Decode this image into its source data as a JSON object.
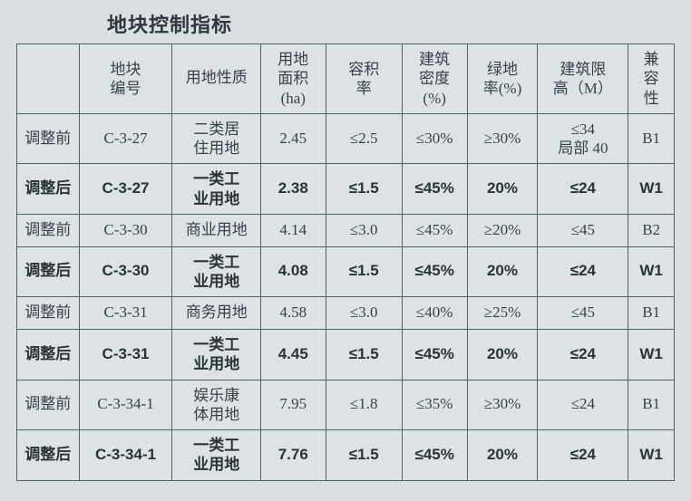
{
  "title": "地块控制指标",
  "columns": [
    "",
    "地块\n编号",
    "用地性质",
    "用地\n面积\n(ha)",
    "容积\n率",
    "建筑\n密度\n(%)",
    "绿地\n率(%)",
    "建筑限\n高（M）",
    "兼\n容\n性"
  ],
  "rows": [
    {
      "bold": false,
      "cells": [
        "调整前",
        "C-3-27",
        "二类居\n住用地",
        "2.45",
        "≤2.5",
        "≤30%",
        "≥30%",
        "≤34\n局部 40",
        "B1"
      ]
    },
    {
      "bold": true,
      "cells": [
        "调整后",
        "C-3-27",
        "一类工\n业用地",
        "2.38",
        "≤1.5",
        "≤45%",
        "20%",
        "≤24",
        "W1"
      ]
    },
    {
      "bold": false,
      "cells": [
        "调整前",
        "C-3-30",
        "商业用地",
        "4.14",
        "≤3.0",
        "≤45%",
        "≥20%",
        "≤45",
        "B2"
      ]
    },
    {
      "bold": true,
      "cells": [
        "调整后",
        "C-3-30",
        "一类工\n业用地",
        "4.08",
        "≤1.5",
        "≤45%",
        "20%",
        "≤24",
        "W1"
      ]
    },
    {
      "bold": false,
      "cells": [
        "调整前",
        "C-3-31",
        "商务用地",
        "4.58",
        "≤3.0",
        "≤40%",
        "≥25%",
        "≤45",
        "B1"
      ]
    },
    {
      "bold": true,
      "cells": [
        "调整后",
        "C-3-31",
        "一类工\n业用地",
        "4.45",
        "≤1.5",
        "≤45%",
        "20%",
        "≤24",
        "W1"
      ]
    },
    {
      "bold": false,
      "cells": [
        "调整前",
        "C-3-34-1",
        "娱乐康\n体用地",
        "7.95",
        "≤1.8",
        "≤35%",
        "≥30%",
        "≤24",
        "B1"
      ]
    },
    {
      "bold": true,
      "cells": [
        "调整后",
        "C-3-34-1",
        "一类工\n业用地",
        "7.76",
        "≤1.5",
        "≤45%",
        "20%",
        "≤24",
        "W1"
      ]
    }
  ]
}
